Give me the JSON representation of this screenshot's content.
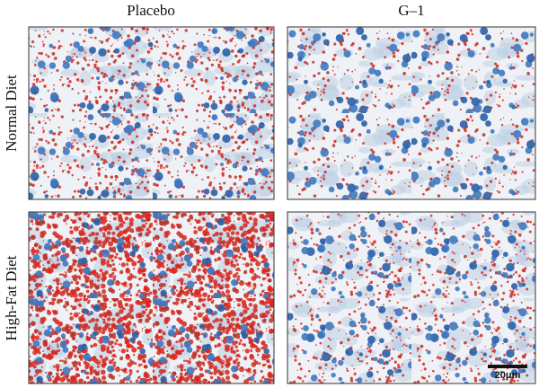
{
  "column_labels": [
    "Placebo",
    "G–1"
  ],
  "row_labels": [
    "Normal Diet",
    "High-Fat Diet"
  ],
  "scale_bar": "20μm"
}
